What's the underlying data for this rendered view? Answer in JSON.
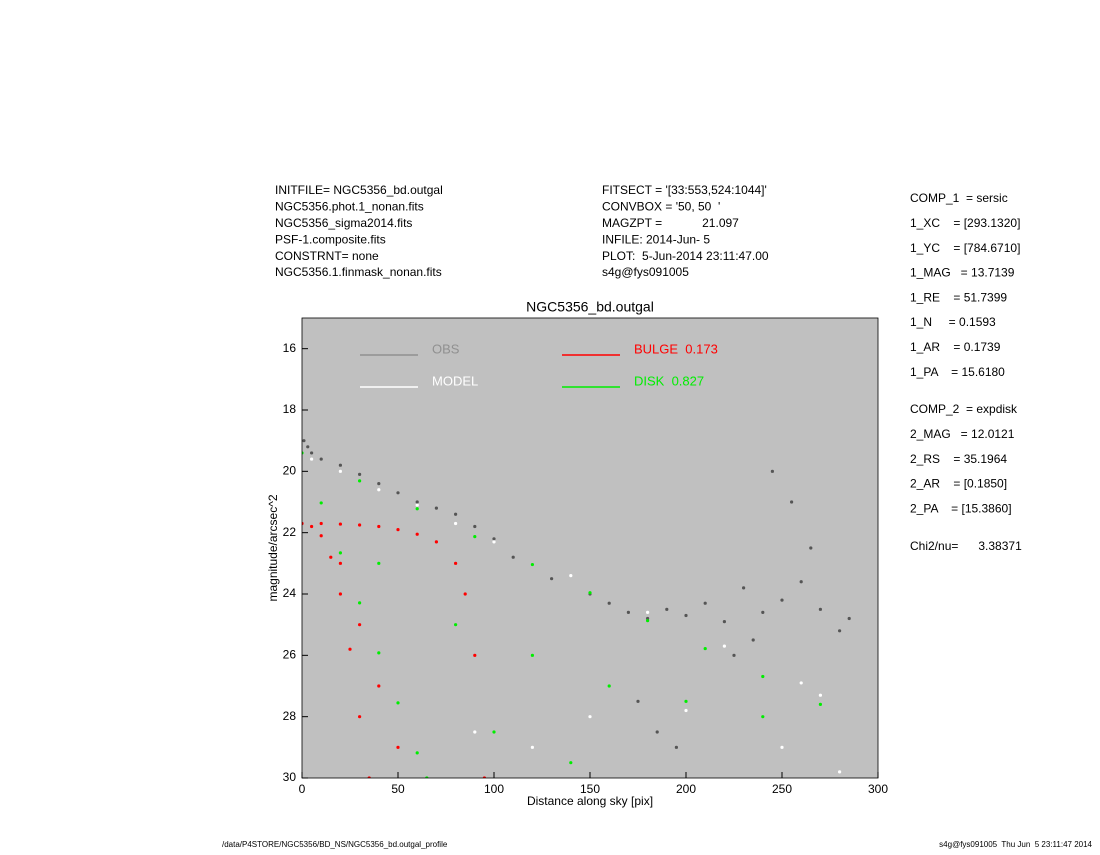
{
  "header": {
    "left": [
      "INITFILE= NGC5356_bd.outgal",
      "NGC5356.phot.1_nonan.fits",
      "NGC5356_sigma2014.fits",
      "PSF-1.composite.fits",
      "CONSTRNT= none",
      "NGC5356.1.finmask_nonan.fits"
    ],
    "middle": [
      "FITSECT = '[33:553,524:1044]'",
      "CONVBOX = '50, 50  '",
      "MAGZPT =            21.097",
      "INFILE: 2014-Jun- 5",
      "PLOT:  5-Jun-2014 23:11:47.00",
      "s4g@fys091005"
    ]
  },
  "params": {
    "comp1": [
      "COMP_1  = sersic",
      "1_XC    = [293.1320]",
      "1_YC    = [784.6710]",
      "1_MAG   = 13.7139",
      "1_RE    = 51.7399",
      "1_N     = 0.1593",
      "1_AR    = 0.1739",
      "1_PA    = 15.6180"
    ],
    "comp2": [
      "COMP_2  = expdisk",
      "2_MAG   = 12.0121",
      "2_RS    = 35.1964",
      "2_AR    = [0.1850]",
      "2_PA    = [15.3860]"
    ],
    "chi": "Chi2/nu=      3.38371"
  },
  "footer": {
    "left": "/data/P4STORE/NGC5356/BD_NS/NGC5356_bd.outgal_profile",
    "right": "s4g@fys091005  Thu Jun  5 23:11:47 2014"
  },
  "chart_data": {
    "type": "scatter",
    "title": "NGC5356_bd.outgal",
    "x_label": "Distance along sky [pix]",
    "y_label": "magnitude/arcsec^2",
    "xlim": [
      0,
      300
    ],
    "ylim": [
      15,
      30
    ],
    "y_inverted": true,
    "xticks": [
      0,
      50,
      100,
      150,
      200,
      250,
      300
    ],
    "yticks": [
      16,
      18,
      20,
      22,
      24,
      26,
      28,
      30
    ],
    "background": "#c0c0c0",
    "series": [
      {
        "name": "OBS",
        "color": "#555555",
        "legend_color": "#909090",
        "x": [
          1,
          3,
          5,
          10,
          20,
          30,
          40,
          50,
          60,
          70,
          80,
          90,
          100,
          110,
          130,
          150,
          160,
          170,
          180,
          190,
          200,
          210,
          220,
          230,
          240,
          250,
          260,
          270,
          280,
          285,
          245,
          255,
          265,
          235,
          225,
          175,
          185,
          195
        ],
        "y": [
          19,
          19.2,
          19.4,
          19.6,
          19.8,
          20.1,
          20.4,
          20.7,
          21,
          21.2,
          21.4,
          21.8,
          22.2,
          22.8,
          23.5,
          24,
          24.3,
          24.6,
          24.8,
          24.5,
          24.7,
          24.3,
          24.9,
          23.8,
          24.6,
          24.2,
          23.6,
          24.5,
          25.2,
          24.8,
          20,
          21,
          22.5,
          25.5,
          26,
          27.5,
          28.5,
          29
        ]
      },
      {
        "name": "DISK  0.827",
        "color": "#00ee00",
        "x": [
          0,
          30,
          60,
          90,
          120,
          150,
          180,
          210,
          240,
          270,
          10,
          20,
          30,
          40,
          50,
          60,
          65,
          40,
          80,
          120,
          160,
          200,
          240,
          100,
          140
        ],
        "y": [
          19.4,
          20.31,
          21.22,
          22.13,
          23.04,
          23.96,
          24.87,
          25.78,
          26.69,
          27.6,
          21.03,
          22.66,
          24.29,
          25.92,
          27.55,
          29.18,
          30,
          23,
          25,
          26,
          27,
          27.5,
          28,
          28.5,
          29.5
        ]
      },
      {
        "name": "MODEL",
        "color": "#ffffff",
        "x": [
          5,
          20,
          40,
          60,
          80,
          100,
          140,
          180,
          220,
          260,
          270,
          150,
          200,
          250,
          280,
          120,
          90
        ],
        "y": [
          19.6,
          20,
          20.6,
          21.1,
          21.7,
          22.3,
          23.4,
          24.6,
          25.7,
          26.9,
          27.3,
          28,
          27.8,
          29,
          29.8,
          29,
          28.5
        ]
      },
      {
        "name": "BULGE  0.173",
        "color": "#ff0000",
        "x": [
          0,
          10,
          20,
          30,
          40,
          50,
          60,
          70,
          80,
          85,
          90,
          95,
          5,
          10,
          15,
          20,
          25,
          30,
          35,
          20,
          30,
          40,
          50
        ],
        "y": [
          21.7,
          21.7,
          21.72,
          21.75,
          21.8,
          21.9,
          22.05,
          22.3,
          23,
          24,
          26,
          30,
          21.8,
          22.1,
          22.8,
          24,
          25.8,
          28,
          30,
          23,
          25,
          27,
          29
        ]
      }
    ]
  }
}
